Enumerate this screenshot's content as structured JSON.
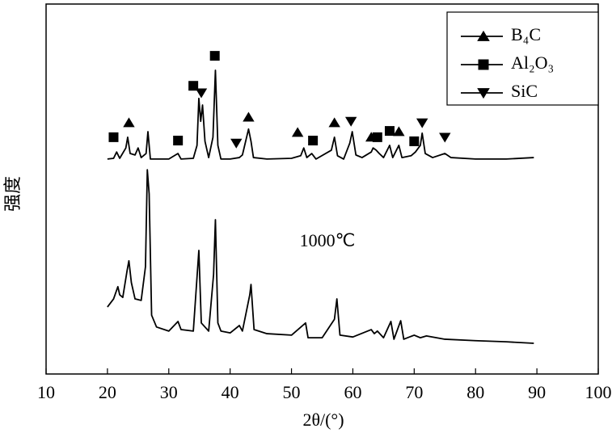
{
  "chart_data": {
    "type": "line",
    "xlabel": "2θ/(°)",
    "ylabel": "强度",
    "xlim": [
      10,
      100
    ],
    "xticks": [
      10,
      20,
      30,
      40,
      50,
      60,
      70,
      80,
      90,
      100
    ],
    "ylim": [
      0,
      100
    ],
    "color": "#000000",
    "legend": "upper right",
    "series": [
      {
        "x": [
          20,
          21,
          21.5,
          22,
          23,
          23.3,
          23.7,
          24.5,
          25,
          25.5,
          26.3,
          26.6,
          27,
          28,
          30,
          31.5,
          32,
          34,
          34.6,
          34.9,
          35.2,
          35.5,
          35.9,
          36.5,
          37.2,
          37.6,
          38,
          38.5,
          40,
          41.5,
          42,
          43,
          43.4,
          43.8,
          46,
          50,
          51.5,
          52,
          52.5,
          53.3,
          54,
          56.5,
          57,
          57.5,
          58.5,
          59.5,
          59.9,
          60.5,
          61.5,
          63,
          63.3,
          63.8,
          64.3,
          65,
          66,
          66.5,
          67.5,
          68,
          69.5,
          70.2,
          71,
          71.3,
          71.8,
          73,
          75,
          76,
          80,
          85,
          89.5
        ],
        "values": [
          58.1,
          58.3,
          60.0,
          58.3,
          61.1,
          64.0,
          59.6,
          59.2,
          61.1,
          58.5,
          59.6,
          65.5,
          58.1,
          58.1,
          58.1,
          59.6,
          58.1,
          58.3,
          61.8,
          74.5,
          68.3,
          72.7,
          62.9,
          58.5,
          64.0,
          82.1,
          61.8,
          58.1,
          58.1,
          58.5,
          59.2,
          66.2,
          62.9,
          58.5,
          58.1,
          58.3,
          59.0,
          61.1,
          58.5,
          59.6,
          58.1,
          60.5,
          64.0,
          59.0,
          58.1,
          62.4,
          65.5,
          59.2,
          58.5,
          60.0,
          61.1,
          60.5,
          59.6,
          58.5,
          61.8,
          58.5,
          61.8,
          58.5,
          59.0,
          60.0,
          61.8,
          65.1,
          59.6,
          58.5,
          59.6,
          58.5,
          58.1,
          58.1,
          58.5
        ]
      },
      {
        "name": "1000℃",
        "x": [
          20,
          21,
          21.7,
          22,
          22.5,
          23.2,
          23.5,
          23.9,
          24.5,
          25.5,
          26.2,
          26.5,
          26.8,
          27.2,
          28,
          30,
          31.5,
          32,
          34,
          34.9,
          35.3,
          36.5,
          37.3,
          37.6,
          38,
          38.5,
          40,
          41.5,
          42,
          43.2,
          43.4,
          43.9,
          46,
          50,
          52.3,
          52.7,
          55,
          57,
          57.4,
          57.9,
          60,
          63,
          63.5,
          64,
          65,
          66.2,
          66.7,
          67.8,
          68.3,
          70,
          71,
          72,
          75,
          80,
          85,
          89.5
        ],
        "values": [
          18.1,
          20.3,
          23.6,
          21.4,
          20.7,
          27.9,
          30.6,
          24.7,
          20.3,
          19.9,
          29.0,
          55.2,
          48.7,
          15.9,
          12.7,
          11.6,
          14.2,
          12.0,
          11.6,
          33.4,
          13.8,
          11.6,
          26.9,
          41.7,
          13.8,
          11.6,
          11.1,
          13.1,
          11.6,
          21.4,
          24.2,
          12.0,
          10.9,
          10.5,
          13.8,
          9.8,
          9.8,
          14.8,
          20.3,
          10.5,
          10.0,
          12.0,
          10.9,
          11.6,
          9.8,
          14.2,
          9.4,
          14.4,
          9.4,
          10.5,
          9.8,
          10.3,
          9.4,
          9.0,
          8.7,
          8.3
        ]
      }
    ],
    "phases": [
      {
        "name": "B₄C",
        "marker": "triangle-up",
        "x": [
          23.5,
          43,
          51,
          57,
          63,
          67.5
        ],
        "y": [
          67.9,
          69.4,
          65.3,
          67.9,
          64.0,
          65.5
        ]
      },
      {
        "name": "Al₂O₃",
        "marker": "square",
        "x": [
          21,
          31.5,
          34,
          37.5,
          53.5,
          64,
          66,
          70
        ],
        "y": [
          64.0,
          63.1,
          77.9,
          86.0,
          63.1,
          64.0,
          65.7,
          62.9
        ]
      },
      {
        "name": "SiC",
        "marker": "triangle-down",
        "x": [
          35.3,
          41,
          59.7,
          71.3,
          75
        ],
        "y": [
          76.0,
          62.4,
          68.3,
          67.9,
          64.0
        ]
      }
    ]
  }
}
